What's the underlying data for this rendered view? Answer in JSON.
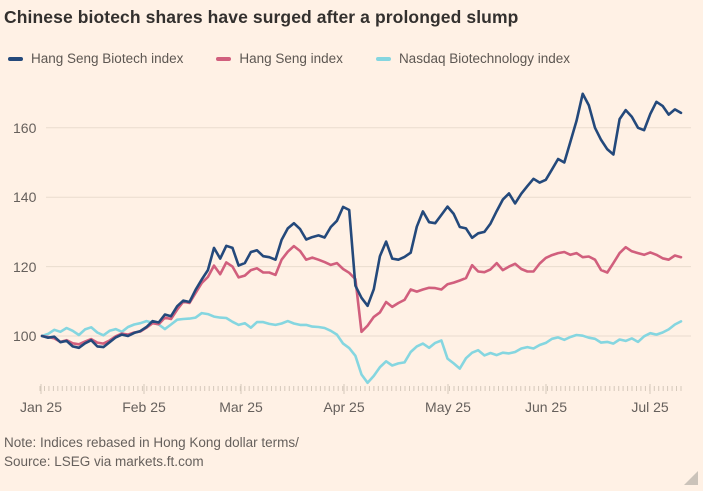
{
  "title": "Chinese biotech shares have surged after a prolonged slump",
  "note": "Note: Indices rebased in Hong Kong dollar terms/",
  "source": "Source: LSEG via markets.ft.com",
  "background_color": "#FFF1E5",
  "chart_data": {
    "type": "line",
    "title": "Chinese biotech shares have surged after a prolonged slump",
    "legend_position": "top",
    "grid": "horizontal",
    "x_axis": {
      "tick_labels": [
        "Jan 25",
        "Feb 25",
        "Mar 25",
        "Apr 25",
        "May 25",
        "Jun 25",
        "Jul 25"
      ]
    },
    "y_axis": {
      "ticks": [
        100,
        120,
        140,
        160
      ],
      "range": [
        85,
        172
      ]
    },
    "style": {
      "grid_color": "#EADCCE",
      "tick_color": "#D5C9BB",
      "axis_text_color": "#66605C"
    },
    "series": [
      {
        "name": "Hang Seng Biotech index",
        "color": "#24497B",
        "values": [
          100,
          99.5,
          99.8,
          98.2,
          98.6,
          97.0,
          96.6,
          97.9,
          98.8,
          97.0,
          96.8,
          98.2,
          99.6,
          100.4,
          100.0,
          100.9,
          101.4,
          102.6,
          104.3,
          103.9,
          106.2,
          105.7,
          108.6,
          110.2,
          109.8,
          113.3,
          116.3,
          119.0,
          125.4,
          122.3,
          126.0,
          125.4,
          120.3,
          121.0,
          124.2,
          124.7,
          123.0,
          122.7,
          122.0,
          127.7,
          131.0,
          132.5,
          130.8,
          127.8,
          128.5,
          129.0,
          128.4,
          131.4,
          133.2,
          137.2,
          136.3,
          114.5,
          111.0,
          108.7,
          113.5,
          123.0,
          127.2,
          122.3,
          122.0,
          122.8,
          124.0,
          131.5,
          135.9,
          132.8,
          132.5,
          134.9,
          137.3,
          135.2,
          131.4,
          131.0,
          128.3,
          129.6,
          130.0,
          132.4,
          136.0,
          139.3,
          141.1,
          138.2,
          141.0,
          143.2,
          145.3,
          144.2,
          145.0,
          148.0,
          151.0,
          150.0,
          156.0,
          162.0,
          169.8,
          166.5,
          160.0,
          156.5,
          153.8,
          152.3,
          162.5,
          165.1,
          163.2,
          160.0,
          159.3,
          164.0,
          167.5,
          166.3,
          163.8,
          165.3,
          164.3
        ]
      },
      {
        "name": "Hang Seng index",
        "color": "#D15F7D",
        "values": [
          100,
          99.7,
          99.3,
          98.3,
          98.8,
          97.9,
          97.6,
          98.4,
          99.1,
          98.1,
          97.8,
          98.7,
          99.9,
          100.7,
          100.4,
          101.0,
          101.3,
          102.4,
          103.7,
          103.4,
          105.3,
          104.9,
          107.6,
          109.9,
          109.5,
          112.4,
          115.3,
          117.0,
          120.3,
          117.8,
          121.2,
          120.0,
          116.9,
          117.4,
          119.0,
          119.5,
          118.3,
          118.3,
          117.6,
          122.0,
          124.3,
          125.9,
          124.5,
          122.0,
          122.6,
          122.0,
          121.3,
          120.5,
          121.0,
          119.3,
          118.2,
          116.4,
          101.2,
          103.0,
          105.5,
          106.8,
          109.8,
          108.4,
          109.5,
          110.4,
          113.4,
          112.8,
          113.4,
          113.9,
          113.8,
          113.4,
          114.9,
          115.4,
          116.0,
          116.7,
          120.4,
          118.6,
          118.4,
          119.2,
          121.0,
          119.0,
          120.0,
          120.8,
          119.3,
          118.6,
          118.6,
          120.9,
          122.5,
          123.3,
          123.9,
          124.2,
          123.4,
          123.9,
          122.7,
          122.9,
          122.0,
          119.0,
          118.3,
          121.0,
          123.9,
          125.6,
          124.4,
          123.9,
          123.4,
          124.1,
          123.4,
          122.4,
          122.0,
          123.2,
          122.7
        ]
      },
      {
        "name": "Nasdaq Biotechnology index",
        "color": "#85D6E0",
        "values": [
          100,
          100.6,
          101.8,
          101.2,
          102.3,
          101.5,
          100.3,
          101.9,
          102.5,
          101.0,
          100.2,
          101.5,
          102.0,
          101.2,
          102.6,
          103.3,
          103.7,
          104.3,
          103.8,
          103.3,
          102.0,
          103.3,
          104.7,
          104.9,
          105.0,
          105.3,
          106.6,
          106.3,
          105.6,
          105.3,
          105.2,
          104.1,
          103.2,
          103.7,
          102.4,
          104.0,
          104.0,
          103.5,
          103.2,
          103.6,
          104.3,
          103.6,
          103.2,
          103.2,
          102.7,
          102.6,
          102.3,
          101.5,
          100.4,
          97.8,
          96.5,
          94.3,
          88.9,
          86.5,
          88.5,
          91.0,
          92.7,
          91.5,
          92.1,
          92.4,
          95.4,
          97.0,
          97.8,
          96.6,
          98.0,
          98.7,
          93.5,
          92.1,
          90.6,
          93.6,
          95.2,
          95.9,
          94.4,
          95.1,
          94.5,
          95.2,
          95.0,
          95.4,
          96.4,
          96.8,
          96.4,
          97.4,
          98.0,
          99.2,
          99.6,
          98.9,
          99.7,
          100.3,
          100.1,
          99.5,
          99.2,
          98.1,
          98.3,
          97.8,
          99.0,
          98.6,
          99.3,
          98.3,
          99.9,
          100.8,
          100.4,
          101.0,
          101.9,
          103.3,
          104.2
        ]
      }
    ]
  }
}
